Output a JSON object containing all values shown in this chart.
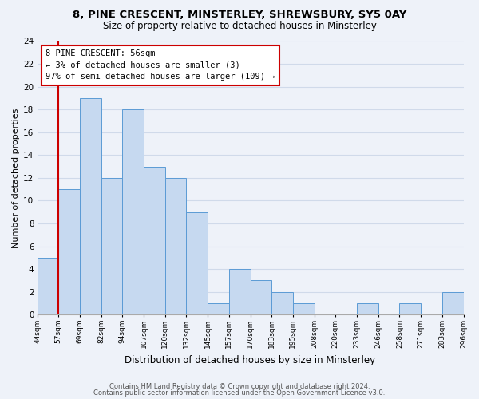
{
  "title": "8, PINE CRESCENT, MINSTERLEY, SHREWSBURY, SY5 0AY",
  "subtitle": "Size of property relative to detached houses in Minsterley",
  "xlabel": "Distribution of detached houses by size in Minsterley",
  "ylabel": "Number of detached properties",
  "bar_values": [
    5,
    11,
    19,
    12,
    18,
    13,
    12,
    9,
    1,
    4,
    3,
    2,
    1,
    0,
    0,
    1,
    0,
    1,
    0,
    2
  ],
  "x_tick_labels": [
    "44sqm",
    "57sqm",
    "69sqm",
    "82sqm",
    "94sqm",
    "107sqm",
    "120sqm",
    "132sqm",
    "145sqm",
    "157sqm",
    "170sqm",
    "183sqm",
    "195sqm",
    "208sqm",
    "220sqm",
    "233sqm",
    "246sqm",
    "258sqm",
    "271sqm",
    "283sqm",
    "296sqm"
  ],
  "bar_color": "#c6d9f0",
  "bar_edge_color": "#5b9bd5",
  "grid_color": "#d0daea",
  "vline_idx": 1,
  "vline_color": "#cc0000",
  "annotation_text_line1": "8 PINE CRESCENT: 56sqm",
  "annotation_text_line2": "← 3% of detached houses are smaller (3)",
  "annotation_text_line3": "97% of semi-detached houses are larger (109) →",
  "annotation_box_color": "#ffffff",
  "annotation_box_edge_color": "#cc0000",
  "ylim": [
    0,
    24
  ],
  "yticks": [
    0,
    2,
    4,
    6,
    8,
    10,
    12,
    14,
    16,
    18,
    20,
    22,
    24
  ],
  "footer_line1": "Contains HM Land Registry data © Crown copyright and database right 2024.",
  "footer_line2": "Contains public sector information licensed under the Open Government Licence v3.0.",
  "background_color": "#eef2f9",
  "title_fontsize": 9.5,
  "subtitle_fontsize": 8.5
}
